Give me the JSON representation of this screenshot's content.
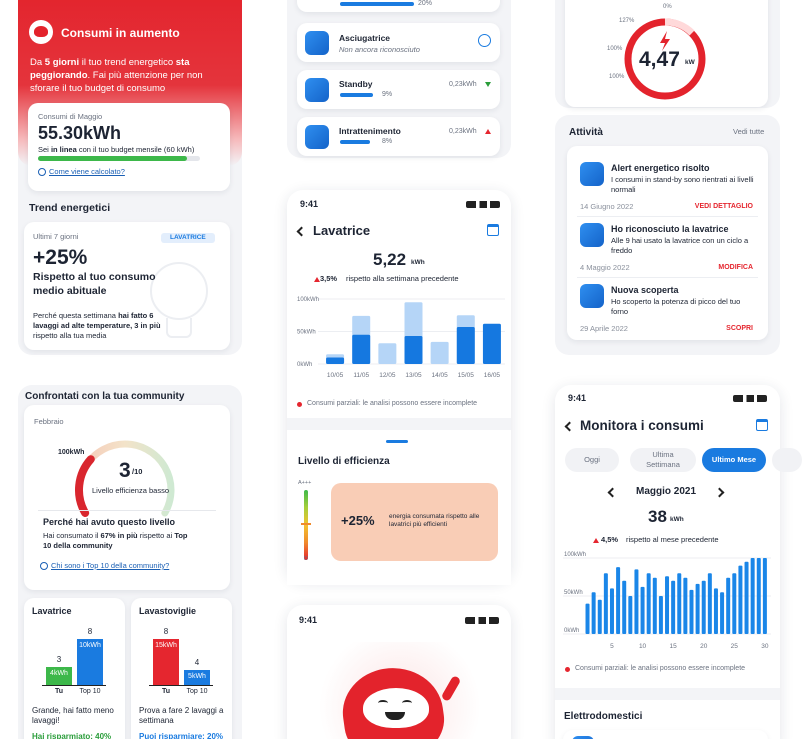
{
  "alert_card": {
    "title": "Consumi in aumento",
    "message": [
      "Da ",
      "5 giorni",
      " il tuo trend energetico ",
      "sta peggiorando",
      ". Fai più attenzione per non sforare il tuo budget di consumo"
    ]
  },
  "monthly_usage": {
    "label": "Consumi di Maggio",
    "value": 55.3,
    "value_label": "55.30kWh",
    "budget": 60,
    "budget_text": [
      "Sei ",
      "in linea",
      " con il tuo budget mensile (60 kWh)"
    ],
    "link": "Come viene calcolato?"
  },
  "trend": {
    "title": "Trend energetici",
    "period": "Ultimi 7 giorni",
    "badge": "LAVATRICE",
    "change": "+25%",
    "headline": "Rispetto al tuo consumo medio abituale",
    "explanation": [
      "Perché questa settimana ",
      "hai fatto 6 lavaggi ad alte temperature, 3 in più",
      " rispetto alla tua media"
    ]
  },
  "community": {
    "title": "Confrontati con la tua community",
    "month": "Febbraio",
    "gauge_label": "100kWh",
    "score": 3,
    "score_max": {
      "value": 10,
      "label": "/10"
    },
    "level": "Livello efficienza basso",
    "reason_title": "Perché hai avuto questo livello",
    "reason": [
      "Hai consumato il ",
      "67% in più",
      " rispetto ai ",
      "Top 10 della community"
    ],
    "link": "Chi sono i Top 10 della community?"
  },
  "comparisons": [
    {
      "title": "Lavatrice",
      "bars": [
        {
          "label": "Tu",
          "count": 3,
          "kwh": 4,
          "kwh_label": "4kWh",
          "color": "#3db84a"
        },
        {
          "label": "Top 10",
          "count": 8,
          "kwh": 10,
          "kwh_label": "10kWh",
          "color": "#1a7be0"
        }
      ],
      "message": "Grande, hai fatto meno lavaggi!",
      "saving": "Hai risparmiato: 40%"
    },
    {
      "title": "Lavastoviglie",
      "bars": [
        {
          "label": "Tu",
          "count": 8,
          "kwh": 15,
          "kwh_label": "15kWh",
          "color": "#e5262f"
        },
        {
          "label": "Top 10",
          "count": 4,
          "kwh": 5,
          "kwh_label": "5kWh",
          "color": "#1a7be0"
        }
      ],
      "message": "Prova a fare 2 lavaggi a settimana",
      "saving": "Puoi risparmiare: 20%"
    }
  ],
  "appliances_list": [
    {
      "share": 20,
      "share_label": "20%"
    },
    {
      "name": "Asciugatrice",
      "status": "Non ancora riconosciuto"
    },
    {
      "name": "Standby",
      "energy": "0,23kWh",
      "share": 9,
      "share_label": "9%",
      "trend": "down"
    },
    {
      "name": "Intrattenimento",
      "energy": "0,23kWh",
      "share": 8,
      "share_label": "8%",
      "trend": "up"
    }
  ],
  "weekly_screen": {
    "time": "9:41",
    "title": "Lavatrice",
    "total": "5,22",
    "unit": "kWh",
    "delta": "3,5%",
    "delta_text": "rispetto alla settimana precedente",
    "chart": {
      "type": "bar",
      "categories": [
        "10/05",
        "11/05",
        "12/05",
        "13/05",
        "14/05",
        "15/05",
        "16/05"
      ],
      "series": [
        {
          "color": "#b5d5f7",
          "values": [
            15,
            74,
            32,
            95,
            34,
            75,
            null
          ]
        },
        {
          "color": "#1578e0",
          "values": [
            10,
            45,
            null,
            43,
            null,
            57,
            62
          ]
        }
      ],
      "ylim": [
        0,
        100
      ],
      "yticks": [
        {
          "value": 0,
          "label": "0kWh"
        },
        {
          "value": 50,
          "label": "50kWh"
        },
        {
          "value": 100,
          "label": "100kWh"
        }
      ]
    },
    "note": "Consumi parziali: le analisi possono essere incomplete",
    "efficiency_title": "Livello di efficienza",
    "scale_top": "A+++",
    "scale_bottom": "D",
    "efficiency_change": "+25%",
    "efficiency_text": "energia consumata rispetto alle lavatrici più efficienti"
  },
  "mascot_screen": {
    "time": "9:41"
  },
  "power_card": {
    "value": "4,47",
    "unit": "kW",
    "labels": [
      "127%",
      "0%",
      "100%",
      "100%"
    ]
  },
  "activity": {
    "title": "Attività",
    "link": "Vedi tutte",
    "items": [
      {
        "title": "Alert energetico risolto",
        "text": "I consumi in stand-by sono rientrati ai livelli normali",
        "date": "14 Giugno 2022",
        "action": "VEDI DETTAGLIO"
      },
      {
        "title": "Ho riconosciuto la lavatrice",
        "text": "Alle 9 hai usato la lavatrice con un ciclo a freddo",
        "date": "4 Maggio 2022",
        "action": "MODIFICA"
      },
      {
        "title": "Nuova scoperta",
        "text": "Ho scoperto la potenza di picco del tuo forno",
        "date": "29 Aprile 2022",
        "action": "SCOPRI"
      }
    ]
  },
  "monitor_screen": {
    "time": "9:41",
    "title": "Monitora i consumi",
    "tabs": [
      "Oggi",
      "Ultima Settimana",
      "Ultimo Mese"
    ],
    "month": "Maggio 2021",
    "total": "38",
    "unit": "kWh",
    "delta": "4,5%",
    "delta_text": "rispetto al mese precedente",
    "chart": {
      "type": "bar",
      "x": [
        1,
        2,
        3,
        4,
        5,
        6,
        7,
        8,
        9,
        10,
        11,
        12,
        13,
        14,
        15,
        16,
        17,
        18,
        19,
        20,
        21,
        22,
        23,
        24,
        25,
        26,
        27,
        28,
        29,
        30
      ],
      "values": [
        40,
        55,
        45,
        80,
        60,
        88,
        70,
        50,
        85,
        62,
        80,
        74,
        50,
        76,
        70,
        80,
        74,
        58,
        66,
        70,
        80,
        60,
        55,
        74,
        80,
        90,
        95,
        100,
        100,
        100
      ],
      "color": "#1a86e8",
      "xlim": [
        0,
        31
      ],
      "xticks": [
        5,
        10,
        15,
        20,
        25,
        30
      ],
      "ylim": [
        0,
        100
      ],
      "yticks": [
        {
          "value": 0,
          "label": "0kWh"
        },
        {
          "value": 50,
          "label": "50kWh"
        },
        {
          "value": 100,
          "label": "100kWh"
        }
      ]
    },
    "note": "Consumi parziali: le analisi possono essere incomplete",
    "section": "Elettrodomestici"
  }
}
